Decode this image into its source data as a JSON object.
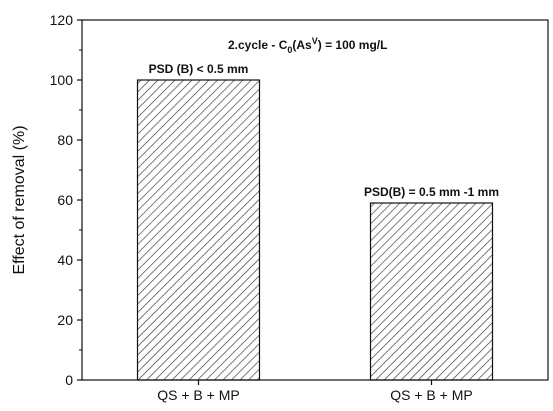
{
  "chart_data": {
    "type": "bar",
    "title": {
      "pre": "2.cycle - C",
      "sub": "0",
      "mid": "(As",
      "sup": "V",
      "post": ") = 100 mg/L"
    },
    "xlabel": "",
    "ylabel": "Effect of removal (%)",
    "ylim": [
      0,
      120
    ],
    "yticks": [
      0,
      20,
      40,
      60,
      80,
      100,
      120
    ],
    "categories": [
      "QS + B + MP",
      "QS + B + MP"
    ],
    "values": [
      100,
      59
    ],
    "bar_annotations": [
      "PSD (B) < 0.5 mm",
      "PSD(B) = 0.5 mm -1 mm"
    ],
    "bar_pattern": "diagonal-hatch",
    "grid": false,
    "legend": "none"
  }
}
